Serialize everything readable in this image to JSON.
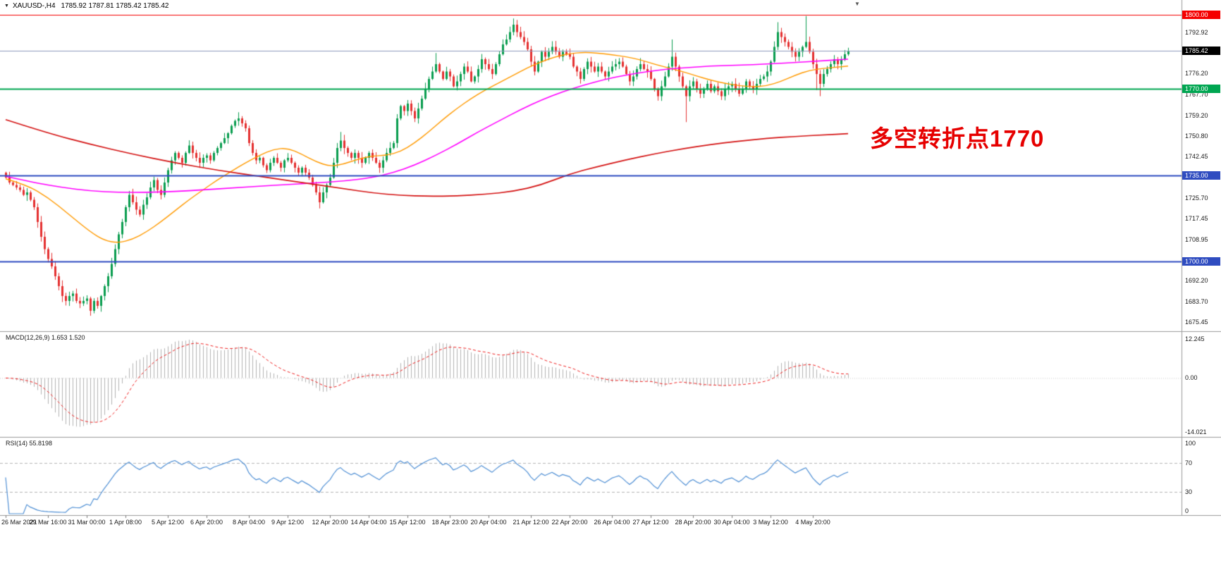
{
  "header": {
    "symbol_label": "XAUUSD-,H4",
    "ohlc_text": "1785.92 1787.81 1785.42 1785.42"
  },
  "icons": {
    "symbol_dropdown": "▼",
    "chart_shift": "▼"
  },
  "chart_data": {
    "type": "candlestick",
    "symbol": "XAUUSD",
    "timeframe": "H4",
    "title": "XAUUSD-,H4",
    "current_price": 1785.42,
    "price_axis": {
      "min": 1675.45,
      "max": 1800.0,
      "plain_ticks": [
        "1792.92",
        "1776.20",
        "1767.70",
        "1759.20",
        "1750.80",
        "1742.45",
        "1725.70",
        "1717.45",
        "1708.95",
        "1692.20",
        "1683.70",
        "1675.45"
      ]
    },
    "levels": [
      {
        "price": 1800.0,
        "label": "1800.00",
        "color": "#f50000",
        "line_width": 1
      },
      {
        "price": 1785.42,
        "label": "1785.42",
        "color": "#000000",
        "line_color": "#8f9bbd",
        "line_width": 1,
        "role": "current-price"
      },
      {
        "price": 1770.0,
        "label": "1770.00",
        "color": "#00a651",
        "line_width": 2
      },
      {
        "price": 1735.0,
        "label": "1735.00",
        "color": "#2f4cc0",
        "line_width": 2
      },
      {
        "price": 1700.0,
        "label": "1700.00",
        "color": "#2f4cc0",
        "line_width": 2
      }
    ],
    "candles": {
      "up_color": "#0a9d4f",
      "down_color": "#e43030",
      "first_open": 1736,
      "closes": [
        1734,
        1732,
        1731,
        1730,
        1729,
        1727,
        1728,
        1725,
        1722,
        1716,
        1710,
        1705,
        1701,
        1698,
        1694,
        1690,
        1686,
        1684,
        1686,
        1687,
        1684,
        1683,
        1684,
        1685,
        1680,
        1684,
        1682,
        1686,
        1690,
        1694,
        1699,
        1705,
        1711,
        1716,
        1722,
        1727,
        1724,
        1721,
        1719,
        1723,
        1726,
        1730,
        1733,
        1729,
        1727,
        1732,
        1737,
        1741,
        1744,
        1742,
        1740,
        1744,
        1747,
        1744,
        1742,
        1740,
        1742,
        1743,
        1741,
        1744,
        1746,
        1748,
        1750,
        1752,
        1755,
        1757,
        1758,
        1756,
        1754,
        1748,
        1744,
        1741,
        1742,
        1739,
        1737,
        1740,
        1742,
        1740,
        1738,
        1741,
        1742,
        1740,
        1738,
        1736,
        1738,
        1736,
        1734,
        1731,
        1728,
        1724,
        1728,
        1731,
        1734,
        1740,
        1746,
        1749,
        1746,
        1744,
        1742,
        1744,
        1742,
        1740,
        1742,
        1744,
        1742,
        1740,
        1738,
        1741,
        1744,
        1746,
        1748,
        1758,
        1763,
        1761,
        1764,
        1761,
        1758,
        1762,
        1766,
        1770,
        1774,
        1777,
        1780,
        1777,
        1774,
        1777,
        1775,
        1771,
        1773,
        1776,
        1779,
        1777,
        1773,
        1775,
        1778,
        1782,
        1780,
        1778,
        1776,
        1780,
        1784,
        1788,
        1790,
        1793,
        1796,
        1793,
        1791,
        1789,
        1786,
        1781,
        1777,
        1781,
        1785,
        1783,
        1785,
        1787,
        1785,
        1783,
        1785,
        1784,
        1783,
        1779,
        1777,
        1774,
        1778,
        1781,
        1779,
        1777,
        1779,
        1777,
        1775,
        1777,
        1779,
        1780,
        1781,
        1779,
        1776,
        1773,
        1775,
        1778,
        1780,
        1778,
        1777,
        1774,
        1770,
        1767,
        1771,
        1775,
        1779,
        1783,
        1779,
        1775,
        1771,
        1767,
        1771,
        1773,
        1770,
        1768,
        1770,
        1772,
        1769,
        1771,
        1769,
        1767,
        1770,
        1771,
        1772,
        1770,
        1768,
        1770,
        1773,
        1771,
        1770,
        1772,
        1774,
        1775,
        1777,
        1781,
        1787,
        1793,
        1791,
        1789,
        1787,
        1785,
        1783,
        1785,
        1787,
        1789,
        1785,
        1780,
        1776,
        1772,
        1776,
        1778,
        1780,
        1782,
        1780,
        1782,
        1784,
        1785.4
      ],
      "wick_overrides": {
        "24": {
          "low": 1678
        },
        "66": {
          "high": 1760.5
        },
        "89": {
          "low": 1721.5
        },
        "95": {
          "high": 1752.5
        },
        "122": {
          "high": 1784.5
        },
        "144": {
          "high": 1798.5
        },
        "189": {
          "high": 1790
        },
        "193": {
          "low": 1756.5
        },
        "219": {
          "high": 1797
        },
        "227": {
          "high": 1799.5
        },
        "230": {
          "low": 1769.5
        },
        "231": {
          "low": 1767
        }
      }
    },
    "moving_averages": [
      {
        "name": "ma-fast",
        "color": "#ff9a00",
        "width": 1.4,
        "points": [
          [
            0,
            1733.5
          ],
          [
            6,
            1731
          ],
          [
            12,
            1726
          ],
          [
            18,
            1719
          ],
          [
            24,
            1712
          ],
          [
            28,
            1708.5
          ],
          [
            32,
            1707.5
          ],
          [
            36,
            1709
          ],
          [
            40,
            1712
          ],
          [
            44,
            1716
          ],
          [
            48,
            1720.5
          ],
          [
            52,
            1725
          ],
          [
            56,
            1729
          ],
          [
            60,
            1733
          ],
          [
            64,
            1736.5
          ],
          [
            68,
            1740
          ],
          [
            72,
            1743
          ],
          [
            76,
            1745.5
          ],
          [
            80,
            1746
          ],
          [
            84,
            1743.5
          ],
          [
            88,
            1740.5
          ],
          [
            92,
            1738.5
          ],
          [
            96,
            1739.5
          ],
          [
            100,
            1741.5
          ],
          [
            104,
            1742.8
          ],
          [
            108,
            1743
          ],
          [
            112,
            1744.5
          ],
          [
            116,
            1748
          ],
          [
            120,
            1752.5
          ],
          [
            124,
            1757.5
          ],
          [
            128,
            1762
          ],
          [
            132,
            1766
          ],
          [
            136,
            1769.5
          ],
          [
            140,
            1772.5
          ],
          [
            144,
            1775.5
          ],
          [
            148,
            1778.5
          ],
          [
            152,
            1781
          ],
          [
            156,
            1783
          ],
          [
            160,
            1784.3
          ],
          [
            164,
            1784.8
          ],
          [
            168,
            1784.5
          ],
          [
            172,
            1783.8
          ],
          [
            176,
            1783
          ],
          [
            180,
            1781.8
          ],
          [
            184,
            1780
          ],
          [
            188,
            1778.5
          ],
          [
            192,
            1777
          ],
          [
            196,
            1775.2
          ],
          [
            200,
            1773.5
          ],
          [
            204,
            1772.2
          ],
          [
            208,
            1771.3
          ],
          [
            212,
            1770.8
          ],
          [
            216,
            1771.2
          ],
          [
            220,
            1773
          ],
          [
            224,
            1775.5
          ],
          [
            228,
            1777.5
          ],
          [
            232,
            1778.3
          ],
          [
            236,
            1778.8
          ],
          [
            239,
            1779.2
          ]
        ]
      },
      {
        "name": "ma-mid",
        "color": "#ff00ff",
        "width": 1.6,
        "points": [
          [
            0,
            1734.5
          ],
          [
            8,
            1732
          ],
          [
            16,
            1730
          ],
          [
            24,
            1728.6
          ],
          [
            32,
            1728
          ],
          [
            40,
            1728
          ],
          [
            48,
            1728.4
          ],
          [
            56,
            1729
          ],
          [
            64,
            1729.8
          ],
          [
            72,
            1730.5
          ],
          [
            80,
            1731.2
          ],
          [
            88,
            1731.8
          ],
          [
            96,
            1732.6
          ],
          [
            104,
            1734
          ],
          [
            110,
            1736
          ],
          [
            116,
            1739
          ],
          [
            122,
            1743
          ],
          [
            128,
            1747.5
          ],
          [
            134,
            1752.5
          ],
          [
            140,
            1757
          ],
          [
            146,
            1761.5
          ],
          [
            152,
            1765.5
          ],
          [
            158,
            1768.8
          ],
          [
            164,
            1771.5
          ],
          [
            170,
            1773.8
          ],
          [
            176,
            1775.6
          ],
          [
            182,
            1777
          ],
          [
            188,
            1778
          ],
          [
            194,
            1778.7
          ],
          [
            200,
            1779.2
          ],
          [
            206,
            1779.5
          ],
          [
            212,
            1779.8
          ],
          [
            218,
            1780.2
          ],
          [
            224,
            1780.7
          ],
          [
            230,
            1781.2
          ],
          [
            239,
            1782
          ]
        ]
      },
      {
        "name": "ma-slow",
        "color": "#d41414",
        "width": 1.7,
        "points": [
          [
            0,
            1757.5
          ],
          [
            12,
            1752
          ],
          [
            24,
            1747.5
          ],
          [
            36,
            1743.5
          ],
          [
            48,
            1740
          ],
          [
            60,
            1737
          ],
          [
            72,
            1734.5
          ],
          [
            84,
            1732
          ],
          [
            96,
            1729.5
          ],
          [
            104,
            1727.8
          ],
          [
            112,
            1726.8
          ],
          [
            120,
            1726.4
          ],
          [
            128,
            1726.6
          ],
          [
            136,
            1727.2
          ],
          [
            144,
            1728.4
          ],
          [
            152,
            1731
          ],
          [
            160,
            1735.5
          ],
          [
            168,
            1738.5
          ],
          [
            176,
            1741.2
          ],
          [
            184,
            1743.6
          ],
          [
            192,
            1745.7
          ],
          [
            200,
            1747.4
          ],
          [
            208,
            1748.8
          ],
          [
            216,
            1749.9
          ],
          [
            224,
            1750.7
          ],
          [
            232,
            1751.3
          ],
          [
            239,
            1751.8
          ]
        ]
      }
    ],
    "indicators": {
      "macd": {
        "label": "MACD(12,26,9) 1.653 1.520",
        "params": [
          12,
          26,
          9
        ],
        "values_text": [
          "1.653",
          "1.520"
        ],
        "axis_labels": [
          "12.245",
          "0.00",
          "-14.021"
        ],
        "hist_color": "#b2b2b2",
        "signal_color": "#ee2020"
      },
      "rsi": {
        "label": "RSI(14) 55.8198",
        "period": 14,
        "value_text": "55.8198",
        "axis_labels": [
          "100",
          "70",
          "30",
          "0"
        ],
        "line_color": "#4f8fd4",
        "level_lines": [
          70,
          30
        ]
      }
    },
    "time_axis": {
      "tick_indices": [
        0,
        12,
        23,
        34,
        46,
        57,
        69,
        80,
        92,
        103,
        114,
        126,
        137,
        149,
        160,
        172,
        183,
        195,
        206,
        217,
        229
      ],
      "labels": [
        "26 Mar 2021",
        "29 Mar 16:00",
        "31 Mar 00:00",
        "1 Apr 08:00",
        "5 Apr 12:00",
        "6 Apr 20:00",
        "8 Apr 04:00",
        "9 Apr 12:00",
        "12 Apr 20:00",
        "14 Apr 04:00",
        "15 Apr 12:00",
        "18 Apr 23:00",
        "20 Apr 04:00",
        "21 Apr 12:00",
        "22 Apr 20:00",
        "26 Apr 04:00",
        "27 Apr 12:00",
        "28 Apr 20:00",
        "30 Apr 04:00",
        "3 May 12:00",
        "4 May 20:00"
      ]
    },
    "annotation": {
      "text": "多空转折点1770",
      "color": "#e60000"
    }
  }
}
